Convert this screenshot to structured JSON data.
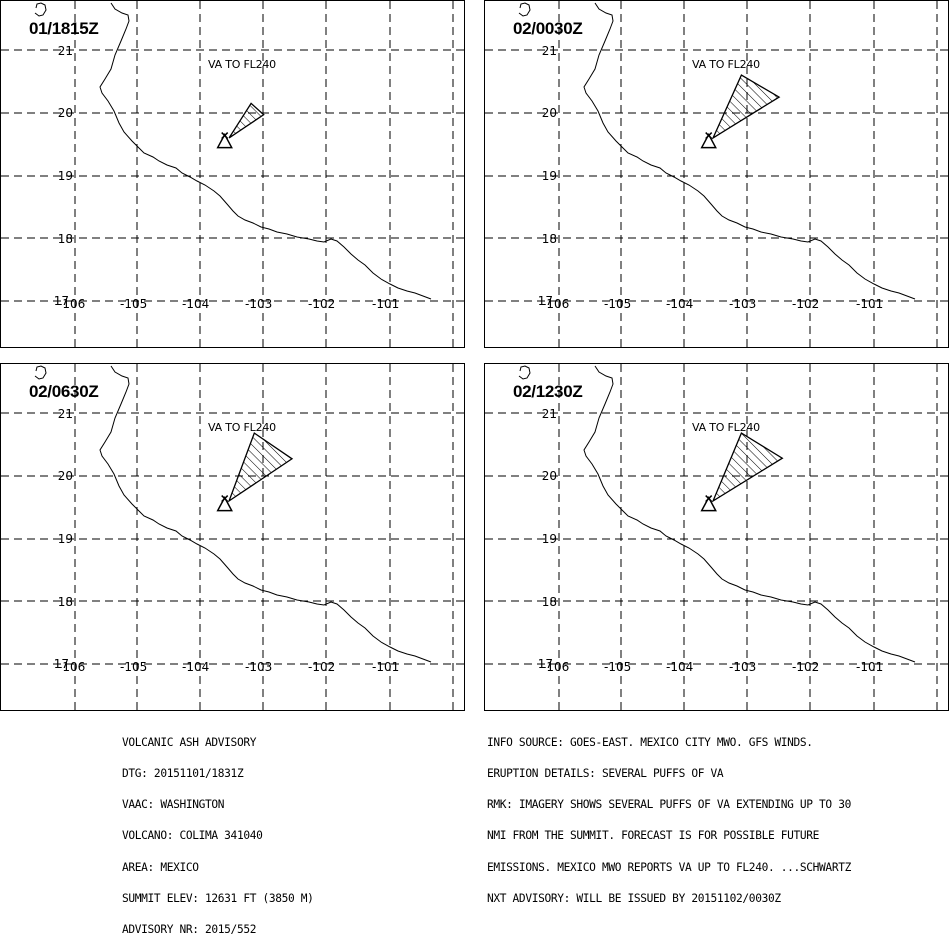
{
  "map": {
    "y_ticks": [
      "21",
      "20",
      "19",
      "18",
      "17"
    ],
    "x_ticks": [
      "-106",
      "-105",
      "-104",
      "-103",
      "-102",
      "-101"
    ],
    "va_label": "VA TO FL240",
    "colors": {
      "line": "#000000",
      "background": "#ffffff"
    }
  },
  "panels": [
    {
      "time": "01/1815Z",
      "ash_polygon_lonlat": [
        [
          -103.55,
          19.6
        ],
        [
          -103.2,
          20.15
        ],
        [
          -103.0,
          19.97
        ]
      ]
    },
    {
      "time": "02/0030Z",
      "ash_polygon_lonlat": [
        [
          -103.55,
          19.6
        ],
        [
          -103.1,
          20.6
        ],
        [
          -102.5,
          20.25
        ]
      ]
    },
    {
      "time": "02/0630Z",
      "ash_polygon_lonlat": [
        [
          -103.55,
          19.6
        ],
        [
          -103.15,
          20.68
        ],
        [
          -102.55,
          20.27
        ]
      ]
    },
    {
      "time": "02/1230Z",
      "ash_polygon_lonlat": [
        [
          -103.55,
          19.6
        ],
        [
          -103.1,
          20.68
        ],
        [
          -102.45,
          20.28
        ]
      ]
    }
  ],
  "volcano": {
    "name": "COLIMA",
    "lon": -103.62,
    "lat": 19.51
  },
  "advisory_left": [
    "VOLCANIC ASH ADVISORY",
    "DTG: 20151101/1831Z",
    "VAAC: WASHINGTON",
    "VOLCANO: COLIMA 341040",
    "AREA: MEXICO",
    "SUMMIT ELEV: 12631 FT (3850 M)",
    "ADVISORY NR: 2015/552"
  ],
  "advisory_right": [
    "INFO SOURCE: GOES-EAST. MEXICO CITY MWO. GFS WINDS.",
    "ERUPTION DETAILS: SEVERAL PUFFS OF VA",
    "RMK: IMAGERY SHOWS SEVERAL PUFFS OF VA EXTENDING UP TO 30",
    "NMI FROM THE SUMMIT. FORECAST IS FOR POSSIBLE FUTURE",
    "EMISSIONS. MEXICO MWO REPORTS VA UP TO FL240. ...SCHWARTZ",
    "NXT ADVISORY: WILL BE ISSUED BY 20151102/0030Z"
  ]
}
